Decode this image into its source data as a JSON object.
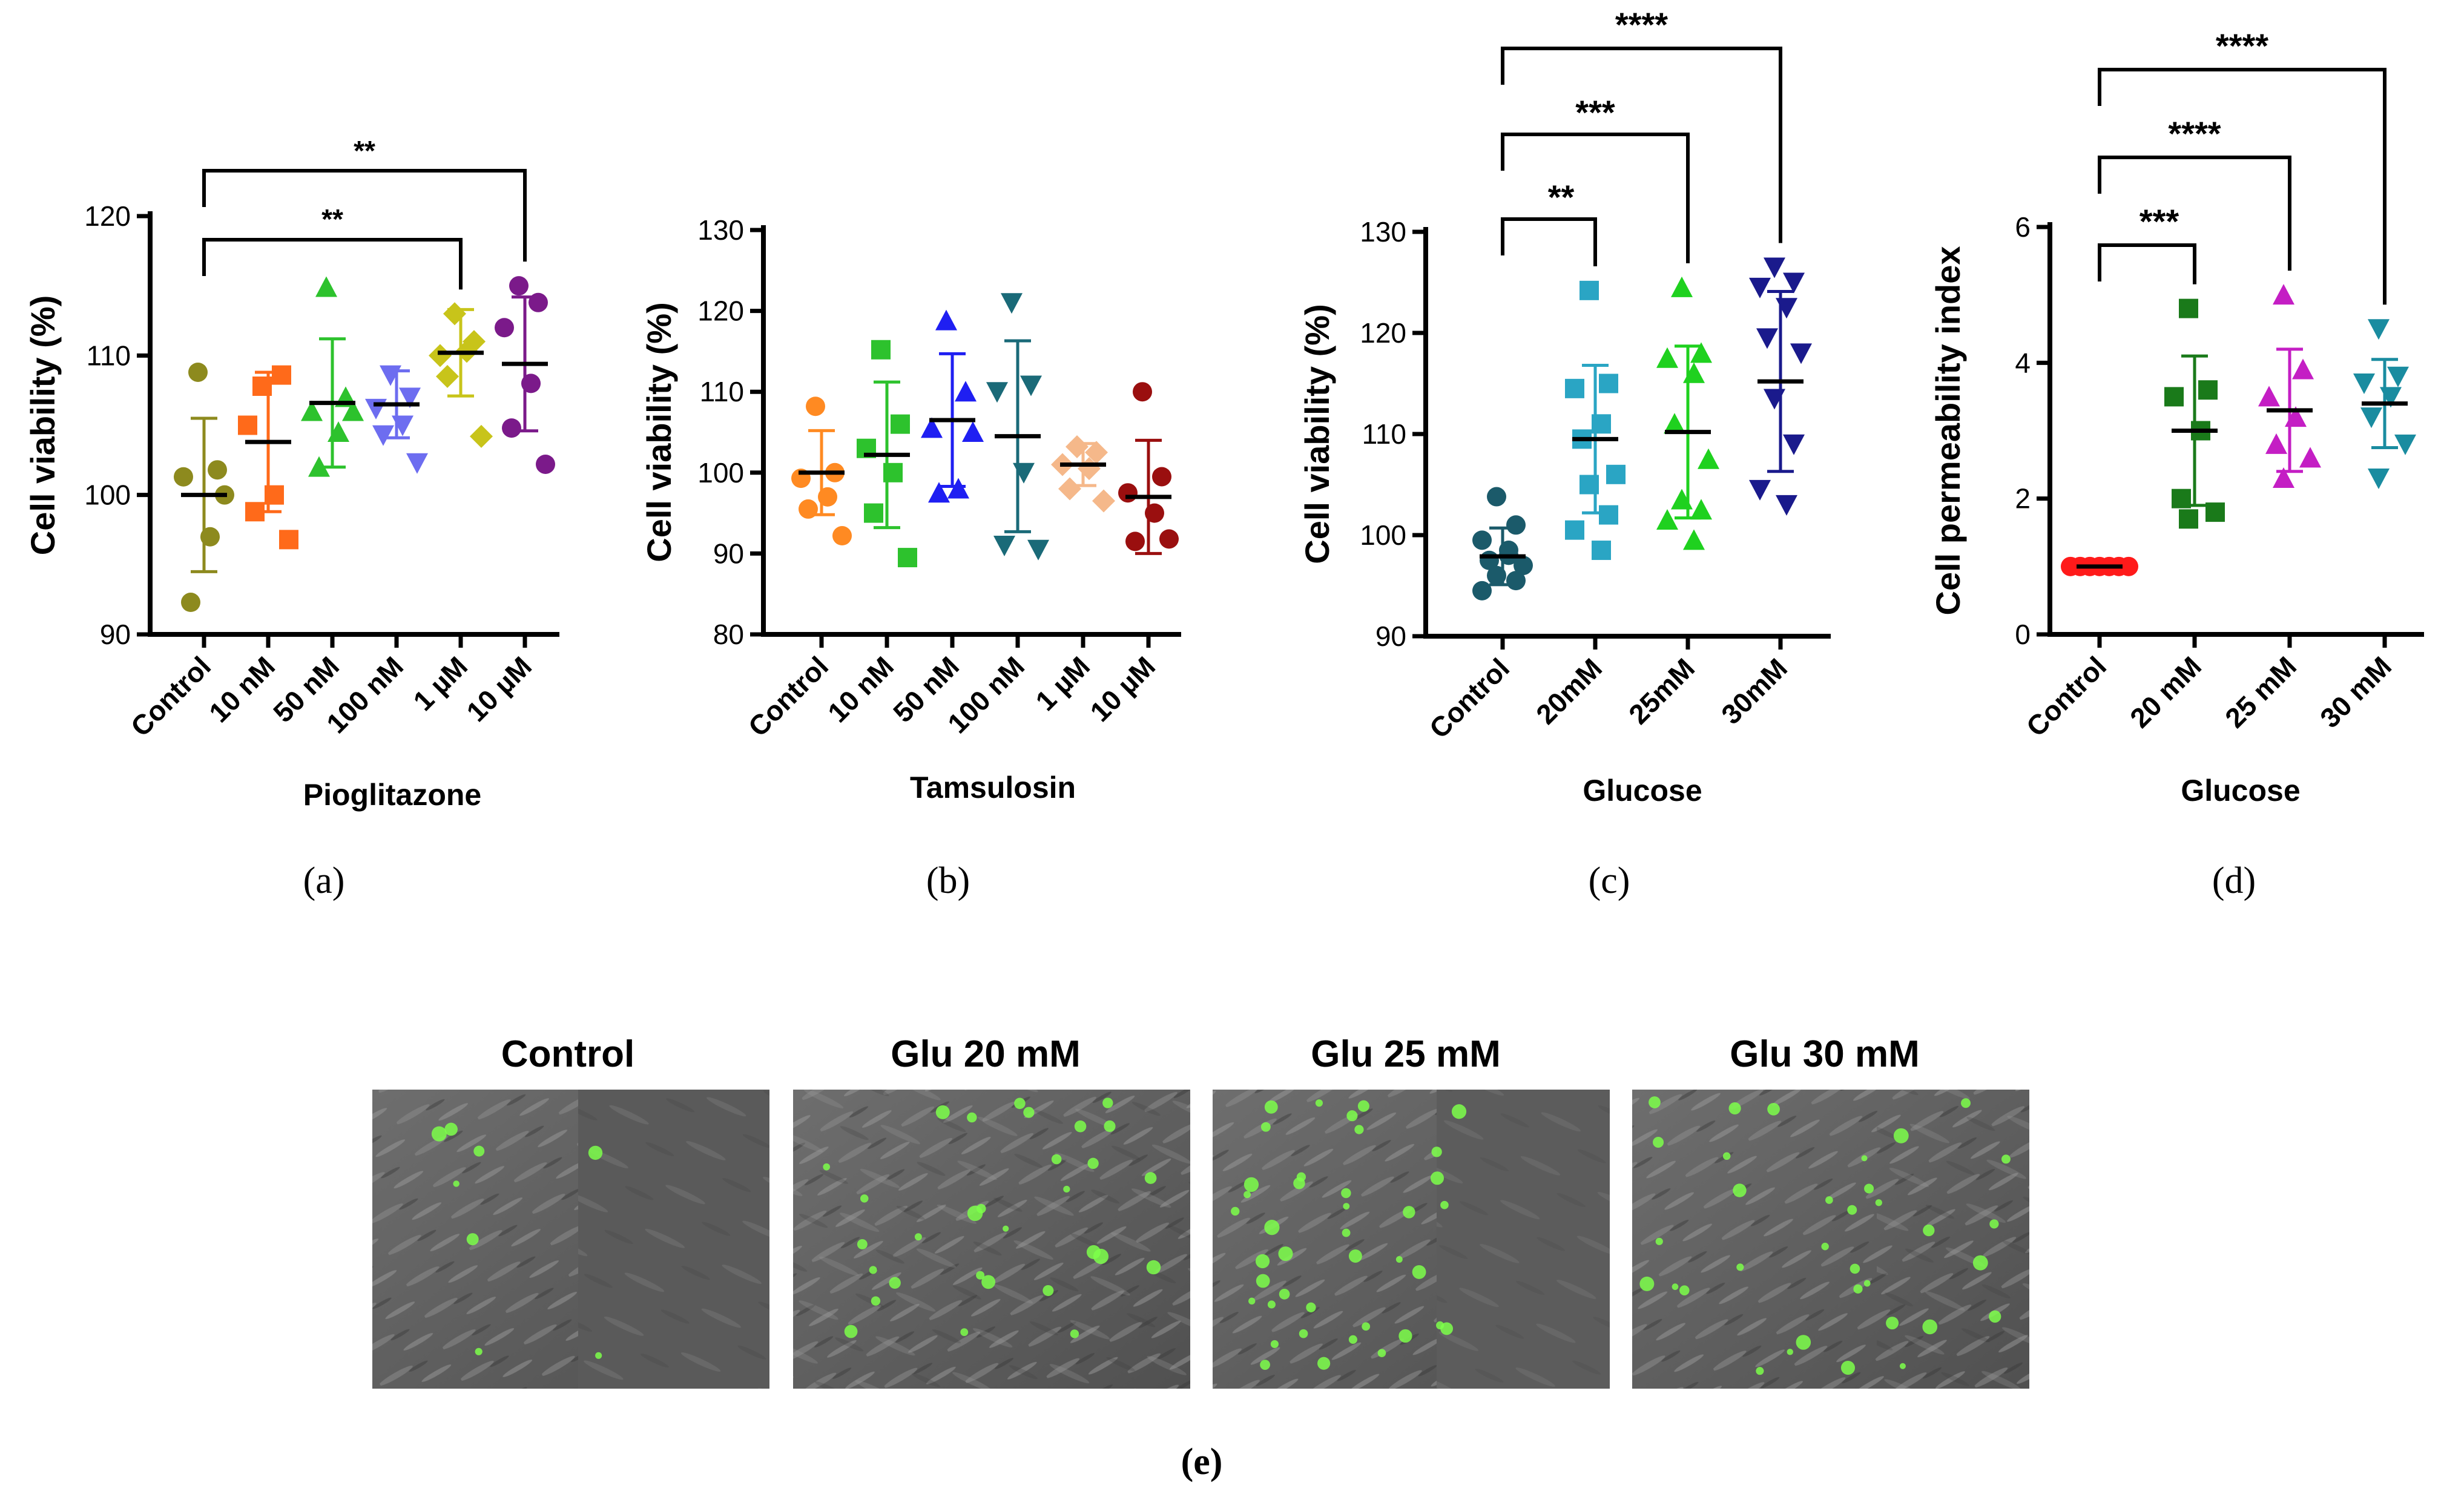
{
  "chart_data": [
    {
      "id": "a",
      "type": "scatter",
      "panel_label": "(a)",
      "ylabel": "Cell viability (%)",
      "xlabel": "Pioglitazone",
      "ylim": [
        90,
        120
      ],
      "yticks": [
        90,
        100,
        110,
        120
      ],
      "categories": [
        "Control",
        "10 nM",
        "50 nM",
        "100 nM",
        "1 µM",
        "10 µM"
      ],
      "colors": [
        "#8d8a1e",
        "#ff6a1a",
        "#2dc22d",
        "#6d6df0",
        "#c8c41a",
        "#7b1a8a"
      ],
      "markers": [
        "circle",
        "square",
        "triangle",
        "triangle-down",
        "diamond",
        "circle"
      ],
      "points": [
        [
          108.8,
          101.8,
          101.3,
          97.0,
          92.3,
          100.0
        ],
        [
          107.8,
          108.6,
          105.0,
          100.0,
          98.8,
          96.8
        ],
        [
          114.9,
          107.0,
          106.0,
          104.5,
          102.0,
          106.0
        ],
        [
          108.6,
          107.0,
          106.2,
          105.0,
          104.3,
          102.3
        ],
        [
          113.0,
          111.0,
          110.0,
          110.3,
          108.5,
          104.2
        ],
        [
          115.0,
          113.8,
          112.0,
          108.0,
          104.8,
          102.2
        ]
      ],
      "means": [
        100.0,
        103.8,
        106.6,
        106.5,
        110.2,
        109.4
      ],
      "sd": [
        5.5,
        5.0,
        4.6,
        2.4,
        3.1,
        4.8
      ],
      "significance": [
        {
          "from": 0,
          "to": 4,
          "label": "**"
        },
        {
          "from": 0,
          "to": 5,
          "label": "**"
        }
      ]
    },
    {
      "id": "b",
      "type": "scatter",
      "panel_label": "(b)",
      "ylabel": "Cell viability (%)",
      "xlabel": "Tamsulosin",
      "ylim": [
        80,
        130
      ],
      "yticks": [
        80,
        90,
        100,
        110,
        120,
        130
      ],
      "categories": [
        "Control",
        "10 nM",
        "50 nM",
        "100 nM",
        "1 µM",
        "10 µM"
      ],
      "colors": [
        "#ff8a22",
        "#2dc22d",
        "#1f1ff2",
        "#1a6a78",
        "#f5b88a",
        "#9a0f0f"
      ],
      "markers": [
        "circle",
        "square",
        "triangle",
        "triangle-down",
        "diamond",
        "circle"
      ],
      "points": [
        [
          108.2,
          100.0,
          99.3,
          97.0,
          95.5,
          92.2
        ],
        [
          115.2,
          106.0,
          103.0,
          100.0,
          95.0,
          89.5
        ],
        [
          118.8,
          110.0,
          105.5,
          98.0,
          97.5,
          105.0
        ],
        [
          121.0,
          110.8,
          110.0,
          100.0,
          91.0,
          90.5
        ],
        [
          103.2,
          102.5,
          101.0,
          100.5,
          98.0,
          96.5
        ],
        [
          110.0,
          99.5,
          97.5,
          95.0,
          91.5,
          91.8
        ]
      ],
      "means": [
        100.0,
        102.2,
        106.5,
        104.5,
        101.0,
        97.0
      ],
      "sd": [
        5.2,
        9.0,
        8.2,
        11.8,
        2.6,
        7.0
      ],
      "significance": []
    },
    {
      "id": "c",
      "type": "scatter",
      "panel_label": "(c)",
      "ylabel": "Cell viability (%)",
      "xlabel": "Glucose",
      "ylim": [
        90,
        130
      ],
      "yticks": [
        90,
        100,
        110,
        120,
        130
      ],
      "categories": [
        "Control",
        "20mM",
        "25mM",
        "30mM"
      ],
      "colors": [
        "#1b5a6a",
        "#2aa5c4",
        "#1fd11f",
        "#1a1a8c"
      ],
      "markers": [
        "circle",
        "square",
        "triangle",
        "triangle-down"
      ],
      "points": [
        [
          103.8,
          101.0,
          99.5,
          98.5,
          97.5,
          97.0,
          96.0,
          95.5,
          94.5,
          98.0
        ],
        [
          124.2,
          115.0,
          114.5,
          111.0,
          109.5,
          106.0,
          105.0,
          102.0,
          100.5,
          98.5
        ],
        [
          124.5,
          118.0,
          117.5,
          116.0,
          111.0,
          107.5,
          103.5,
          102.5,
          101.5,
          99.5
        ],
        [
          126.5,
          125.0,
          124.5,
          122.5,
          119.5,
          118.0,
          113.5,
          109.0,
          104.5,
          103.0
        ]
      ],
      "means": [
        97.9,
        109.5,
        110.2,
        115.2
      ],
      "sd": [
        2.8,
        7.3,
        8.5,
        8.9
      ],
      "significance": [
        {
          "from": 0,
          "to": 1,
          "label": "**"
        },
        {
          "from": 0,
          "to": 2,
          "label": "***"
        },
        {
          "from": 0,
          "to": 3,
          "label": "****"
        }
      ]
    },
    {
      "id": "d",
      "type": "scatter",
      "panel_label": "(d)",
      "ylabel": "Cell permeability index",
      "xlabel": "Glucose",
      "ylim": [
        0,
        6
      ],
      "yticks": [
        0,
        2,
        4,
        6
      ],
      "categories": [
        "Control",
        "20 mM",
        "25 mM",
        "30 mM"
      ],
      "colors": [
        "#ff1a1a",
        "#1a7a1a",
        "#c41ec4",
        "#1a8ca0"
      ],
      "markers": [
        "circle",
        "square",
        "triangle",
        "triangle-down"
      ],
      "points": [
        [
          1.0,
          1.0,
          1.0,
          1.0,
          1.0,
          1.0,
          1.0
        ],
        [
          4.8,
          3.6,
          3.5,
          3.0,
          2.0,
          1.8,
          1.7
        ],
        [
          5.0,
          3.9,
          3.5,
          3.2,
          2.8,
          2.6,
          2.3
        ],
        [
          4.5,
          3.8,
          3.7,
          3.5,
          3.2,
          2.8,
          2.3
        ]
      ],
      "means": [
        1.0,
        3.0,
        3.3,
        3.4
      ],
      "sd": [
        0.0,
        1.1,
        0.9,
        0.65
      ],
      "significance": [
        {
          "from": 0,
          "to": 1,
          "label": "***"
        },
        {
          "from": 0,
          "to": 2,
          "label": "****"
        },
        {
          "from": 0,
          "to": 3,
          "label": "****"
        }
      ]
    }
  ],
  "micrographs": {
    "panel_label": "(e)",
    "titles": [
      "Control",
      "Glu 20 mM",
      "Glu 25 mM",
      "Glu 30 mM"
    ],
    "green_cell_counts": [
      8,
      30,
      40,
      34
    ]
  }
}
